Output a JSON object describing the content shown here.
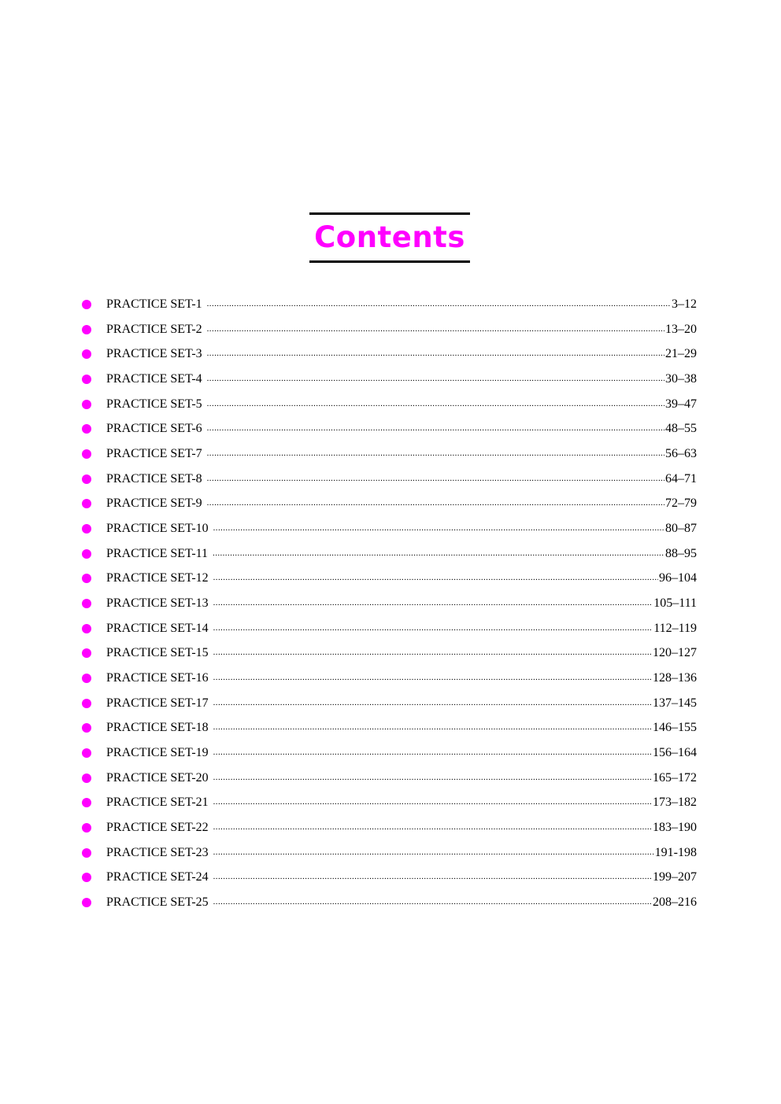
{
  "title": "Contents",
  "accent_color": "#ff00ff",
  "bullet_icon": "filled-circle",
  "entries": [
    {
      "label": "PRACTICE SET-1",
      "pages": "3–12"
    },
    {
      "label": "PRACTICE SET-2",
      "pages": "13–20"
    },
    {
      "label": "PRACTICE SET-3",
      "pages": "21–29"
    },
    {
      "label": "PRACTICE SET-4",
      "pages": "30–38"
    },
    {
      "label": "PRACTICE SET-5",
      "pages": "39–47"
    },
    {
      "label": "PRACTICE SET-6",
      "pages": "48–55"
    },
    {
      "label": "PRACTICE SET-7",
      "pages": "56–63"
    },
    {
      "label": "PRACTICE SET-8",
      "pages": "64–71"
    },
    {
      "label": "PRACTICE SET-9",
      "pages": "72–79"
    },
    {
      "label": "PRACTICE SET-10",
      "pages": "80–87"
    },
    {
      "label": "PRACTICE SET-11",
      "pages": "88–95"
    },
    {
      "label": "PRACTICE SET-12",
      "pages": "96–104"
    },
    {
      "label": "PRACTICE SET-13",
      "pages": "105–111"
    },
    {
      "label": "PRACTICE SET-14",
      "pages": "112–119"
    },
    {
      "label": "PRACTICE SET-15",
      "pages": "120–127"
    },
    {
      "label": "PRACTICE SET-16",
      "pages": "128–136"
    },
    {
      "label": "PRACTICE SET-17",
      "pages": "137–145"
    },
    {
      "label": "PRACTICE SET-18",
      "pages": "146–155"
    },
    {
      "label": "PRACTICE SET-19",
      "pages": "156–164"
    },
    {
      "label": "PRACTICE SET-20",
      "pages": "165–172"
    },
    {
      "label": "PRACTICE SET-21",
      "pages": "173–182"
    },
    {
      "label": "PRACTICE SET-22",
      "pages": "183–190"
    },
    {
      "label": "PRACTICE SET-23",
      "pages": " 191-198"
    },
    {
      "label": "PRACTICE SET-24",
      "pages": "199–207"
    },
    {
      "label": "PRACTICE SET-25",
      "pages": "208–216"
    }
  ]
}
